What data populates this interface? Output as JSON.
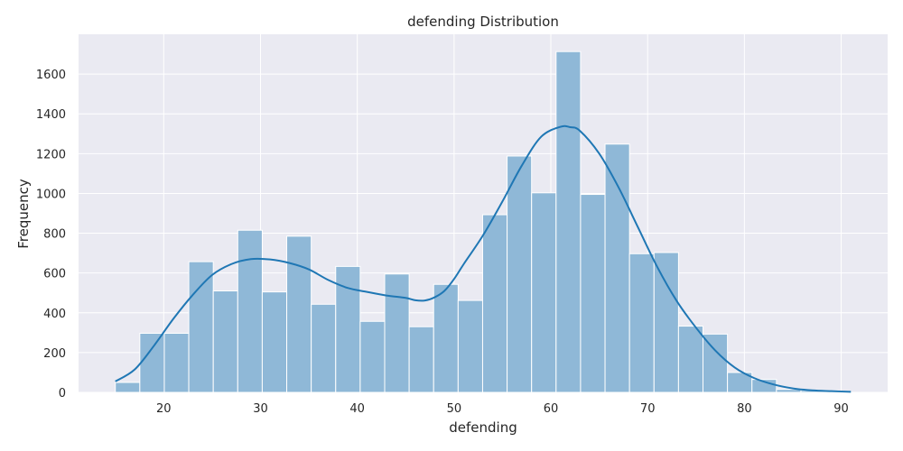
{
  "chart_data": {
    "type": "bar",
    "title": "defending Distribution",
    "xlabel": "defending",
    "ylabel": "Frequency",
    "xlim": [
      11.2,
      94.8
    ],
    "ylim": [
      0,
      1800
    ],
    "x_ticks": [
      20,
      30,
      40,
      50,
      60,
      70,
      80,
      90
    ],
    "y_ticks": [
      0,
      200,
      400,
      600,
      800,
      1000,
      1200,
      1400,
      1600
    ],
    "grid": true,
    "bin_edges": [
      15.0,
      17.53,
      20.06,
      22.59,
      25.12,
      27.65,
      30.18,
      32.71,
      35.24,
      37.77,
      40.3,
      42.83,
      45.36,
      47.89,
      50.42,
      52.95,
      55.48,
      58.01,
      60.54,
      63.07,
      65.6,
      68.13,
      70.66,
      73.19,
      75.72,
      78.25,
      80.78,
      83.31,
      85.84,
      88.37,
      90.9
    ],
    "values": [
      50,
      297,
      297,
      657,
      510,
      815,
      505,
      785,
      443,
      633,
      357,
      595,
      330,
      543,
      462,
      893,
      1188,
      1003,
      1713,
      995,
      1248,
      697,
      703,
      333,
      293,
      100,
      65,
      15,
      10,
      3
    ],
    "kde": {
      "x": [
        15,
        17,
        19,
        21,
        23,
        25,
        27,
        29,
        31,
        33,
        35,
        37,
        39,
        41,
        43,
        45,
        46,
        47,
        48,
        49,
        50,
        51,
        53,
        55,
        57,
        59,
        61,
        62,
        63,
        65,
        67,
        69,
        71,
        73,
        75,
        77,
        79,
        81,
        83,
        85,
        87,
        89,
        91
      ],
      "y": [
        55,
        115,
        235,
        370,
        490,
        590,
        645,
        670,
        668,
        650,
        618,
        565,
        525,
        505,
        487,
        475,
        463,
        462,
        478,
        510,
        570,
        645,
        790,
        960,
        1140,
        1285,
        1335,
        1333,
        1315,
        1200,
        1030,
        830,
        630,
        460,
        325,
        210,
        125,
        72,
        40,
        20,
        10,
        6,
        3
      ]
    },
    "colors": {
      "bar_fill": "#8fb8d7",
      "bar_stroke": "#ffffff",
      "kde_line": "#1f77b4",
      "plot_bg": "#eaeaf2",
      "grid": "#ffffff"
    }
  }
}
